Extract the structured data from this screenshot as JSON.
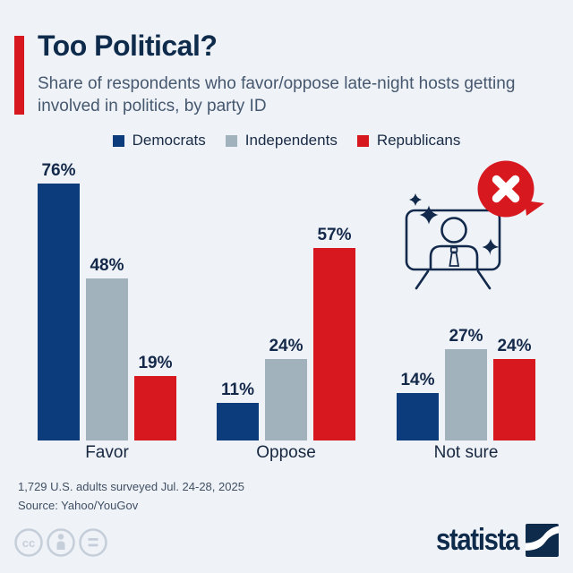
{
  "header": {
    "title": "Too Political?",
    "subtitle": "Share of respondents who favor/oppose late-night hosts getting involved in politics, by party ID"
  },
  "chart_data": {
    "type": "bar",
    "title": "Too Political?",
    "unit": "%",
    "categories": [
      "Favor",
      "Oppose",
      "Not sure"
    ],
    "series": [
      {
        "name": "Democrats",
        "color": "#0d3c7d",
        "values": [
          76,
          11,
          14
        ]
      },
      {
        "name": "Independents",
        "color": "#a2b2bd",
        "values": [
          48,
          24,
          27
        ]
      },
      {
        "name": "Republicans",
        "color": "#d7181f",
        "values": [
          19,
          57,
          24
        ]
      }
    ],
    "value_labels": [
      "76%",
      "48%",
      "19%",
      "11%",
      "24%",
      "57%",
      "14%",
      "27%",
      "24%"
    ],
    "legend_position": "top",
    "ylim": [
      0,
      80
    ],
    "grid": false,
    "xlabel": "",
    "ylabel": ""
  },
  "illustration": {
    "description": "tv-with-person-and-crossed-out-speech-bubble"
  },
  "footer": {
    "note": "1,729 U.S. adults surveyed Jul. 24-28, 2025",
    "source": "Source: Yahoo/YouGov",
    "logo_text": "statista",
    "license_icons": [
      "cc",
      "attribution",
      "no-derivatives"
    ]
  },
  "colors": {
    "background": "#eff3f8",
    "accent_red": "#d7181f",
    "democrats_navy": "#0d3c7d",
    "independents_gray": "#a2b2bd",
    "republicans_red": "#d7181f",
    "title_navy": "#0f2b4c",
    "subtitle_gray": "#46586f",
    "value_label": "#14294a",
    "footer_gray": "#414f63",
    "cc_gray": "#c6cfd9"
  }
}
